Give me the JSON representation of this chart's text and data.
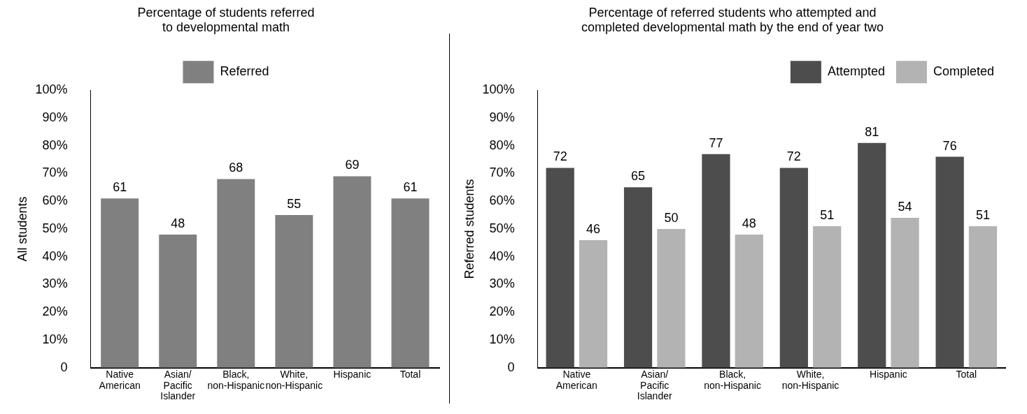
{
  "chart_data": [
    {
      "type": "bar",
      "title": "Percentage of students referred to developmental math",
      "ylabel": "All students",
      "categories": [
        "Native American",
        "Asian/ Pacific Islander",
        "Black, non-Hispanic",
        "White, non-Hispanic",
        "Hispanic",
        "Total"
      ],
      "series": [
        {
          "name": "Referred",
          "color": "#808080",
          "values": [
            61,
            48,
            68,
            55,
            69,
            61
          ]
        }
      ],
      "ylim": [
        0,
        100
      ],
      "yticks": [
        0,
        {
          "value": 10,
          "label": "10%"
        },
        {
          "value": 20,
          "label": "20%"
        },
        {
          "value": 30,
          "label": "30%"
        },
        {
          "value": 40,
          "label": "40%"
        },
        {
          "value": 50,
          "label": "50%"
        },
        {
          "value": 60,
          "label": "60%"
        },
        {
          "value": 70,
          "label": "70%"
        },
        {
          "value": 80,
          "label": "80%"
        },
        {
          "value": 90,
          "label": "90%"
        },
        {
          "value": 100,
          "label": "100%"
        }
      ],
      "grid": false,
      "legend": "top",
      "data_labels": true
    },
    {
      "type": "bar",
      "title": "Percentage of referred students who attempted and completed developmental math by the end of year two",
      "ylabel": "Referred students",
      "categories": [
        "Native American",
        "Asian/ Pacific Islander",
        "Black, non-Hispanic",
        "White, non-Hispanic",
        "Hispanic",
        "Total"
      ],
      "series": [
        {
          "name": "Attempted",
          "color": "#4d4d4d",
          "values": [
            72,
            65,
            77,
            72,
            81,
            76
          ]
        },
        {
          "name": "Completed",
          "color": "#b3b3b3",
          "values": [
            46,
            50,
            48,
            51,
            54,
            51
          ]
        }
      ],
      "ylim": [
        0,
        100
      ],
      "yticks": [
        0,
        {
          "value": 10,
          "label": "10%"
        },
        {
          "value": 20,
          "label": "20%"
        },
        {
          "value": 30,
          "label": "30%"
        },
        {
          "value": 40,
          "label": "40%"
        },
        {
          "value": 50,
          "label": "50%"
        },
        {
          "value": 60,
          "label": "60%"
        },
        {
          "value": 70,
          "label": "70%"
        },
        {
          "value": 80,
          "label": "80%"
        },
        {
          "value": 90,
          "label": "90%"
        },
        {
          "value": 100,
          "label": "100%"
        }
      ],
      "grid": false,
      "legend": "top right",
      "data_labels": true
    }
  ]
}
